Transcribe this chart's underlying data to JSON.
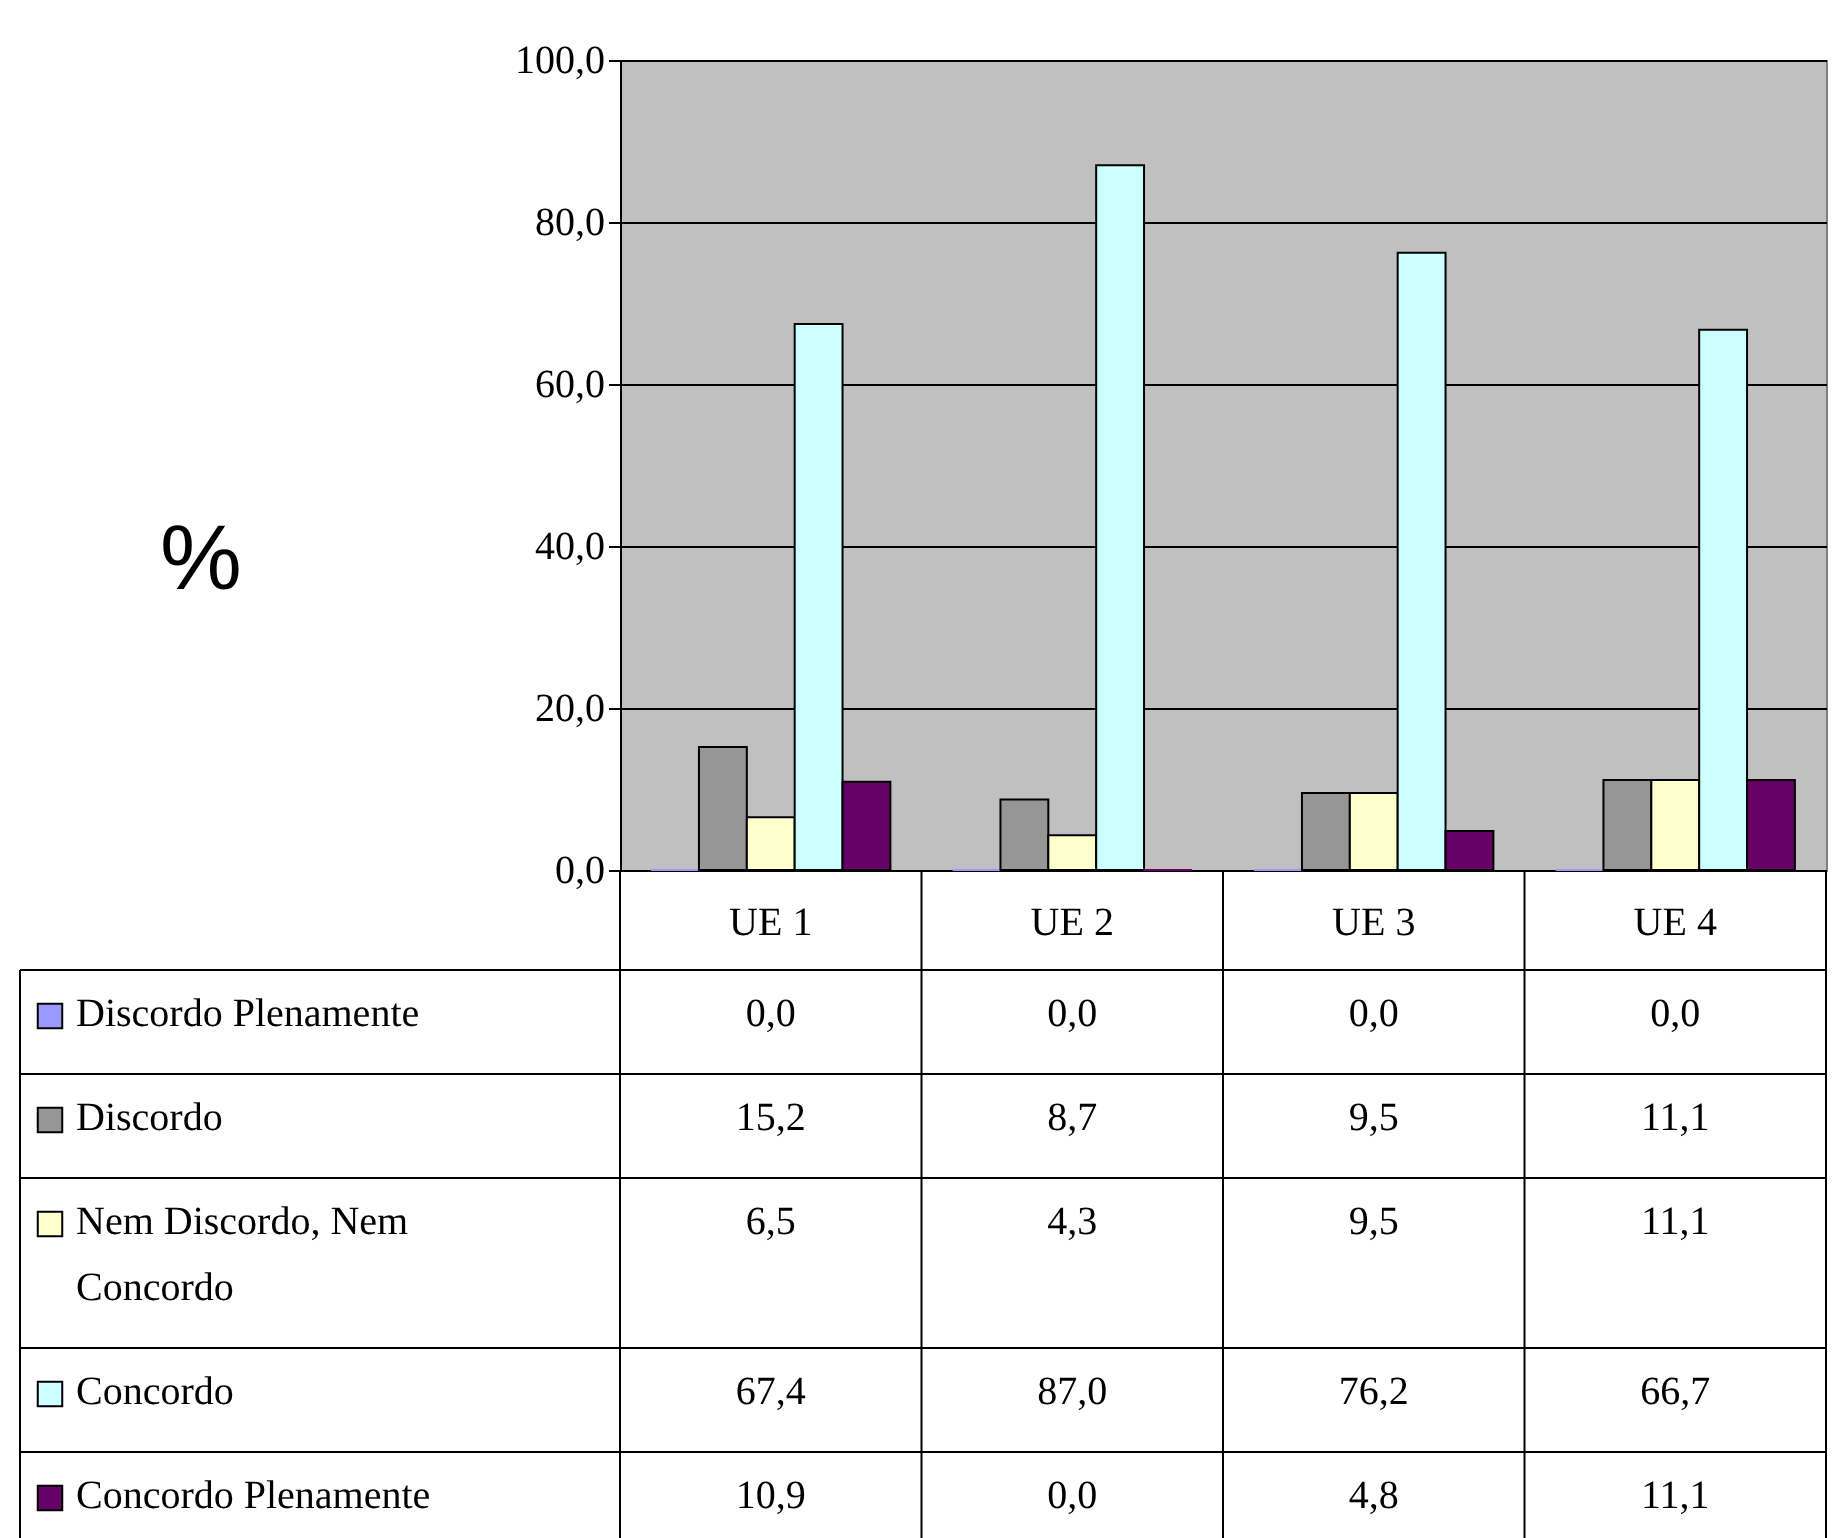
{
  "chart_data": {
    "type": "bar",
    "categories": [
      "UE 1",
      "UE 2",
      "UE 3",
      "UE 4"
    ],
    "ylabel": "%",
    "ylim": [
      0,
      100
    ],
    "yticks": [
      {
        "value": 0,
        "label": "0,0"
      },
      {
        "value": 20,
        "label": "20,0"
      },
      {
        "value": 40,
        "label": "40,0"
      },
      {
        "value": 60,
        "label": "60,0"
      },
      {
        "value": 80,
        "label": "80,0"
      },
      {
        "value": 100,
        "label": "100,0"
      }
    ],
    "grid": "y",
    "legend": "bottom",
    "series": [
      {
        "name": "Discordo Plenamente",
        "color": "#9999ff",
        "values": [
          0.0,
          0.0,
          0.0,
          0.0
        ],
        "value_labels": [
          "0,0",
          "0,0",
          "0,0",
          "0,0"
        ]
      },
      {
        "name": "Discordo",
        "color": "#969696",
        "values": [
          15.2,
          8.7,
          9.5,
          11.1
        ],
        "value_labels": [
          "15,2",
          "8,7",
          "9,5",
          "11,1"
        ]
      },
      {
        "name": "Nem Discordo, Nem Concordo",
        "color": "#ffffcc",
        "values": [
          6.5,
          4.3,
          9.5,
          11.1
        ],
        "value_labels": [
          "6,5",
          "4,3",
          "9,5",
          "11,1"
        ]
      },
      {
        "name": "Concordo",
        "color": "#ccffff",
        "values": [
          67.4,
          87.0,
          76.2,
          66.7
        ],
        "value_labels": [
          "67,4",
          "87,0",
          "76,2",
          "66,7"
        ]
      },
      {
        "name": "Concordo Plenamente",
        "color": "#660066",
        "values": [
          10.9,
          0.0,
          4.8,
          11.1
        ],
        "value_labels": [
          "10,9",
          "0,0",
          "4,8",
          "11,1"
        ]
      }
    ]
  }
}
